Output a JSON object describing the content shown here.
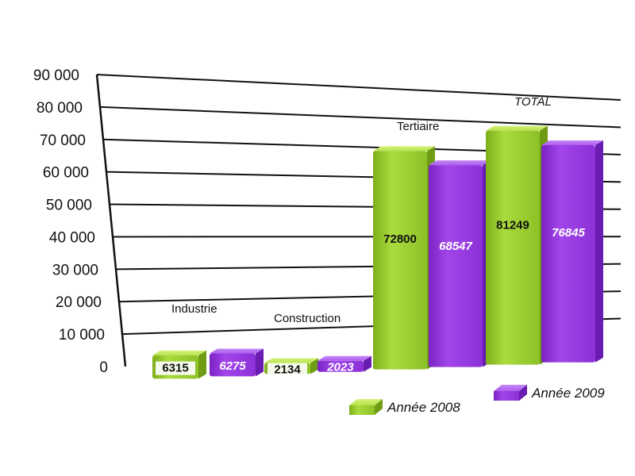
{
  "chart_data": {
    "type": "bar",
    "categories": [
      "Industrie",
      "Construction",
      "Tertiaire",
      "TOTAL"
    ],
    "series": [
      {
        "name": "Année 2008",
        "values": [
          6315,
          2134,
          72800,
          81249
        ],
        "color": "#9acd32"
      },
      {
        "name": "Année 2009",
        "values": [
          6275,
          2023,
          68547,
          76845
        ],
        "color": "#9b3ce0"
      }
    ],
    "y_ticks": [
      "0",
      "10 000",
      "20 000",
      "30 000",
      "40 000",
      "50 000",
      "60 000",
      "70 000",
      "80 000",
      "90 000"
    ],
    "ylim": [
      0,
      90000
    ],
    "grid": true,
    "legend_position": "bottom-right",
    "style": "3d"
  }
}
